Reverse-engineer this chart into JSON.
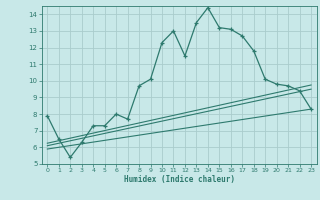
{
  "xlabel": "Humidex (Indice chaleur)",
  "background_color": "#c8e8e8",
  "grid_color": "#aacccc",
  "line_color": "#2e7a6e",
  "xlim": [
    -0.5,
    23.5
  ],
  "ylim": [
    5,
    14.5
  ],
  "yticks": [
    5,
    6,
    7,
    8,
    9,
    10,
    11,
    12,
    13,
    14
  ],
  "xticks": [
    0,
    1,
    2,
    3,
    4,
    5,
    6,
    7,
    8,
    9,
    10,
    11,
    12,
    13,
    14,
    15,
    16,
    17,
    18,
    19,
    20,
    21,
    22,
    23
  ],
  "main_x": [
    0,
    1,
    2,
    3,
    4,
    5,
    6,
    7,
    8,
    9,
    10,
    11,
    12,
    13,
    14,
    15,
    16,
    17,
    18,
    19,
    20,
    21,
    22,
    23
  ],
  "main_y": [
    7.9,
    6.5,
    5.4,
    6.3,
    7.3,
    7.3,
    8.0,
    7.7,
    9.7,
    10.1,
    12.3,
    13.0,
    11.5,
    13.5,
    14.4,
    13.2,
    13.1,
    12.7,
    11.8,
    10.1,
    9.8,
    9.7,
    9.4,
    8.3
  ],
  "line1_x": [
    0,
    23
  ],
  "line1_y": [
    5.9,
    8.3
  ],
  "line2_x": [
    0,
    23
  ],
  "line2_y": [
    6.1,
    9.5
  ],
  "line3_x": [
    0,
    23
  ],
  "line3_y": [
    6.25,
    9.75
  ]
}
